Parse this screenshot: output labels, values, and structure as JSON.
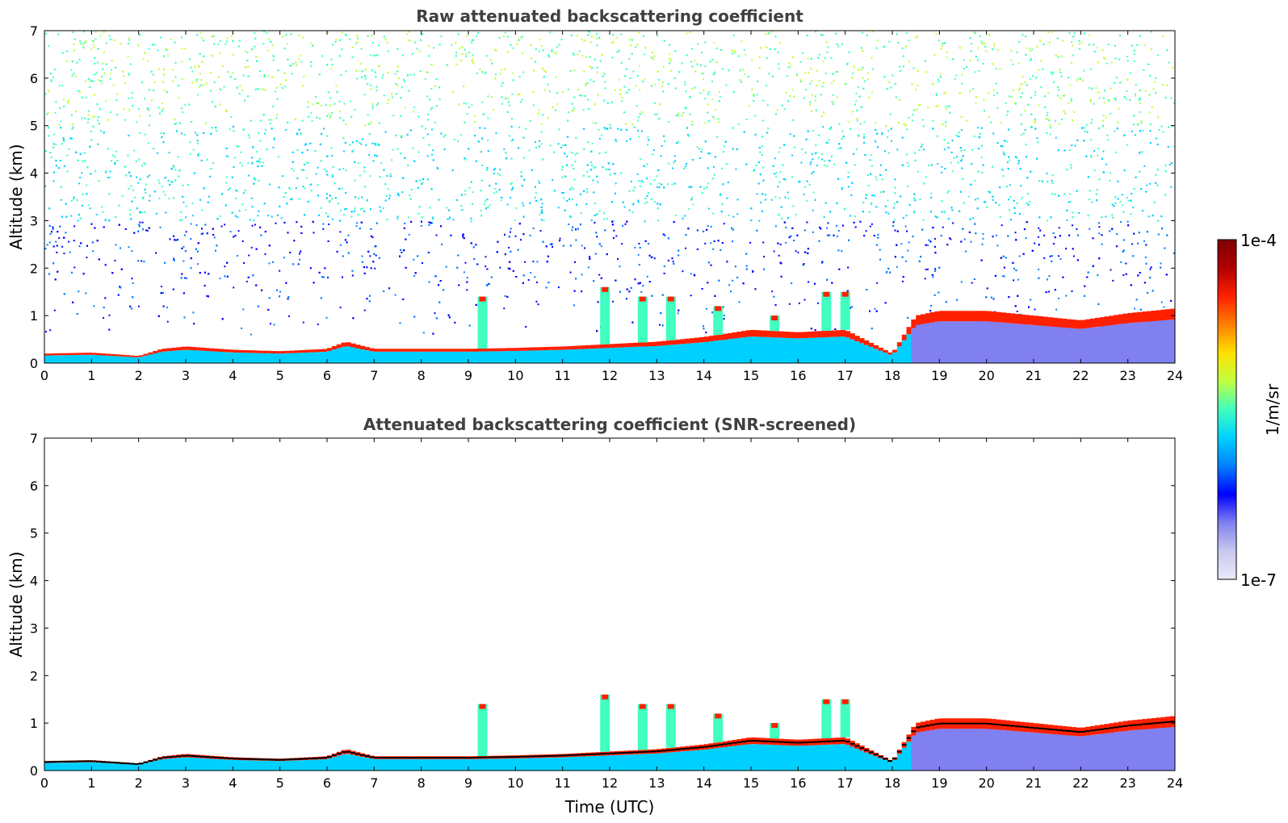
{
  "chart_data": [
    {
      "type": "heatmap",
      "title": "Raw attenuated backscattering coefficient",
      "xlabel": "",
      "ylabel": "Altitude (km)",
      "xlim": [
        0,
        24
      ],
      "ylim": [
        0,
        7
      ],
      "xticks": [
        "0",
        "1",
        "2",
        "3",
        "4",
        "5",
        "6",
        "7",
        "8",
        "9",
        "10",
        "11",
        "12",
        "13",
        "14",
        "15",
        "16",
        "17",
        "18",
        "19",
        "20",
        "21",
        "22",
        "23",
        "24"
      ],
      "yticks": [
        "0",
        "1",
        "2",
        "3",
        "4",
        "5",
        "6",
        "7"
      ],
      "noise": true,
      "boundary_layer_top_km": [
        [
          0,
          0.2
        ],
        [
          1,
          0.22
        ],
        [
          2,
          0.15
        ],
        [
          2.5,
          0.3
        ],
        [
          3,
          0.35
        ],
        [
          4,
          0.28
        ],
        [
          5,
          0.25
        ],
        [
          6,
          0.3
        ],
        [
          6.4,
          0.45
        ],
        [
          7,
          0.3
        ],
        [
          9,
          0.3
        ],
        [
          10,
          0.32
        ],
        [
          11,
          0.35
        ],
        [
          12,
          0.4
        ],
        [
          13,
          0.45
        ],
        [
          14,
          0.55
        ],
        [
          15,
          0.7
        ],
        [
          16,
          0.65
        ],
        [
          17,
          0.7
        ],
        [
          18,
          0.2
        ],
        [
          18.5,
          1.0
        ],
        [
          19,
          1.1
        ],
        [
          20,
          1.1
        ],
        [
          21,
          1.0
        ],
        [
          22,
          0.9
        ],
        [
          23,
          1.05
        ],
        [
          24,
          1.15
        ]
      ],
      "convective_plumes": [
        {
          "time": 9.3,
          "top_km": 1.4
        },
        {
          "time": 11.9,
          "top_km": 1.6
        },
        {
          "time": 12.7,
          "top_km": 1.4
        },
        {
          "time": 13.3,
          "top_km": 1.4
        },
        {
          "time": 14.3,
          "top_km": 1.2
        },
        {
          "time": 15.5,
          "top_km": 1.0
        },
        {
          "time": 16.6,
          "top_km": 1.5
        },
        {
          "time": 17.0,
          "top_km": 1.5
        }
      ]
    },
    {
      "type": "heatmap",
      "title": "Attenuated backscattering coefficient (SNR-screened)",
      "xlabel": "Time (UTC)",
      "ylabel": "Altitude (km)",
      "xlim": [
        0,
        24
      ],
      "ylim": [
        0,
        7
      ],
      "xticks": [
        "0",
        "1",
        "2",
        "3",
        "4",
        "5",
        "6",
        "7",
        "8",
        "9",
        "10",
        "11",
        "12",
        "13",
        "14",
        "15",
        "16",
        "17",
        "18",
        "19",
        "20",
        "21",
        "22",
        "23",
        "24"
      ],
      "yticks": [
        "0",
        "1",
        "2",
        "3",
        "4",
        "5",
        "6",
        "7"
      ],
      "noise": false
    }
  ],
  "colorbar": {
    "label": "1/m/sr",
    "max_label": "1e-4",
    "min_label": "1e-7",
    "scale": "log",
    "range": [
      1e-07,
      0.0001
    ],
    "colormap": "jet",
    "colors": [
      "#e8e8f8",
      "#c8c8f0",
      "#8080f0",
      "#0000ff",
      "#0080ff",
      "#00d0ff",
      "#40ffc0",
      "#c0ff40",
      "#ffe000",
      "#ff8000",
      "#ff2000",
      "#b00000",
      "#800000"
    ]
  }
}
